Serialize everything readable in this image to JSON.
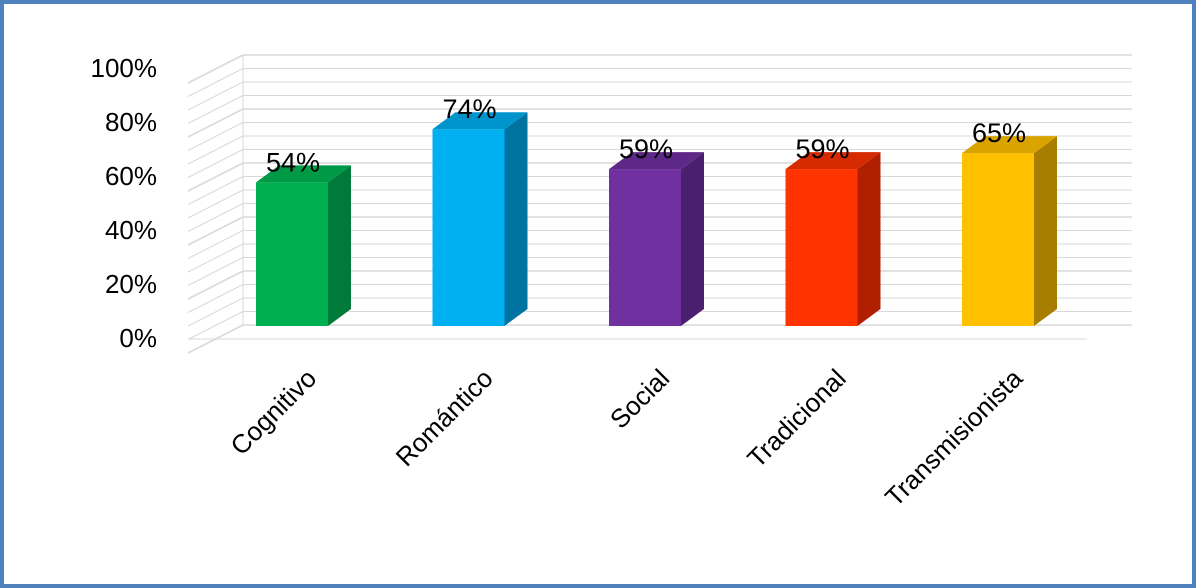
{
  "chart_data": {
    "type": "bar",
    "categories": [
      "Cognitivo",
      "Romántico",
      "Social",
      "Tradicional",
      "Transmisionista"
    ],
    "values": [
      54,
      74,
      59,
      59,
      65
    ],
    "value_labels": [
      "54%",
      "74%",
      "59%",
      "59%",
      "65%"
    ],
    "y_ticks": [
      "0%",
      "20%",
      "40%",
      "60%",
      "80%",
      "100%"
    ],
    "ylim": [
      0,
      100
    ],
    "grid": true,
    "legend": "none",
    "colors": {
      "frame": "#4f81bd",
      "grid": "#d9d9d9",
      "bars": [
        {
          "front": "#00b050",
          "side": "#007a38",
          "top": "#009a46"
        },
        {
          "front": "#00b0f0",
          "side": "#0073a0",
          "top": "#0094cc"
        },
        {
          "front": "#7030a0",
          "side": "#4a1f6e",
          "top": "#5e2888"
        },
        {
          "front": "#ff3300",
          "side": "#b02000",
          "top": "#d62a00"
        },
        {
          "front": "#ffc000",
          "side": "#a87e00",
          "top": "#d9a300"
        }
      ]
    }
  }
}
